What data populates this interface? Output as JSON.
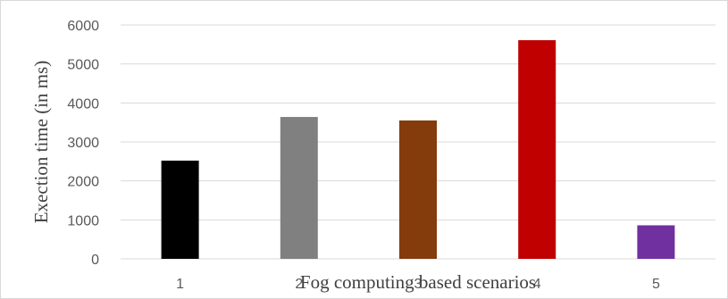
{
  "chart_data": {
    "type": "bar",
    "title": "",
    "xlabel": "Fog computing based scenarios",
    "ylabel": "Exection time (in ms)",
    "categories": [
      "1",
      "2",
      "3",
      "4",
      "5"
    ],
    "values": [
      2520,
      3640,
      3550,
      5610,
      860
    ],
    "bar_colors": [
      "#000000",
      "#808080",
      "#843C0C",
      "#C00000",
      "#7030A0"
    ],
    "ylim": [
      0,
      6000
    ],
    "yticks": [
      0,
      1000,
      2000,
      3000,
      4000,
      5000,
      6000
    ],
    "grid": true,
    "legend": "none"
  }
}
